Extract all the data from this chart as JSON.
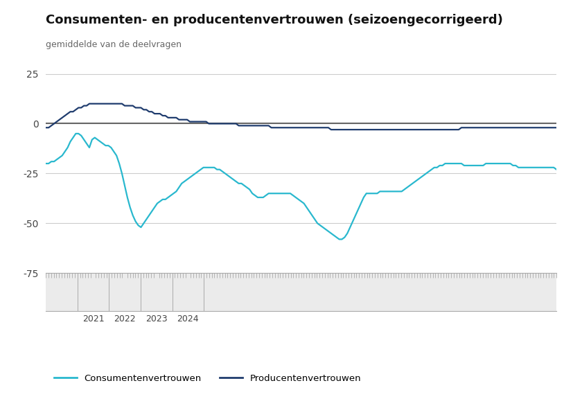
{
  "title": "Consumenten- en producentenvertrouwen (seizoengecorrigeerd)",
  "subtitle": "gemiddelde van de deelvragen",
  "ylim": [
    -75,
    30
  ],
  "yticks": [
    -75,
    -50,
    -25,
    0,
    25
  ],
  "bg_color": "#ffffff",
  "plot_bg_color": "#ffffff",
  "grid_color": "#cccccc",
  "zero_line_color": "#666666",
  "consumer_color": "#29b8ce",
  "producer_color": "#1f3c6e",
  "legend_consumer": "Consumentenvertrouwen",
  "legend_producer": "Producentenvertrouwen",
  "nav_bg_color": "#ebebeb",
  "consumer_data": [
    -20,
    -20,
    -19,
    -19,
    -18,
    -17,
    -16,
    -14,
    -12,
    -9,
    -7,
    -5,
    -5,
    -6,
    -8,
    -10,
    -12,
    -8,
    -7,
    -8,
    -9,
    -10,
    -11,
    -11,
    -12,
    -14,
    -16,
    -20,
    -25,
    -31,
    -37,
    -42,
    -46,
    -49,
    -51,
    -52,
    -50,
    -48,
    -46,
    -44,
    -42,
    -40,
    -39,
    -38,
    -38,
    -37,
    -36,
    -35,
    -34,
    -32,
    -30,
    -29,
    -28,
    -27,
    -26,
    -25,
    -24,
    -23,
    -22,
    -22,
    -22,
    -22,
    -22,
    -23,
    -23,
    -24,
    -25,
    -26,
    -27,
    -28,
    -29,
    -30,
    -30,
    -31,
    -32,
    -33,
    -35,
    -36,
    -37,
    -37,
    -37,
    -36,
    -35,
    -35,
    -35,
    -35,
    -35,
    -35,
    -35,
    -35,
    -35,
    -36,
    -37,
    -38,
    -39,
    -40,
    -42,
    -44,
    -46,
    -48,
    -50,
    -51,
    -52,
    -53,
    -54,
    -55,
    -56,
    -57,
    -58,
    -58,
    -57,
    -55,
    -52,
    -49,
    -46,
    -43,
    -40,
    -37,
    -35,
    -35,
    -35,
    -35,
    -35,
    -34,
    -34,
    -34,
    -34,
    -34,
    -34,
    -34,
    -34,
    -34,
    -33,
    -32,
    -31,
    -30,
    -29,
    -28,
    -27,
    -26,
    -25,
    -24,
    -23,
    -22,
    -22,
    -21,
    -21,
    -20,
    -20,
    -20,
    -20,
    -20,
    -20,
    -20,
    -21,
    -21,
    -21,
    -21,
    -21,
    -21,
    -21,
    -21,
    -20,
    -20,
    -20,
    -20,
    -20,
    -20,
    -20,
    -20,
    -20,
    -20,
    -21,
    -21,
    -22,
    -22,
    -22,
    -22,
    -22,
    -22,
    -22,
    -22,
    -22,
    -22,
    -22,
    -22,
    -22,
    -22,
    -23
  ],
  "producer_data": [
    -2,
    -2,
    -1,
    0,
    1,
    2,
    3,
    4,
    5,
    6,
    6,
    7,
    8,
    8,
    9,
    9,
    10,
    10,
    10,
    10,
    10,
    10,
    10,
    10,
    10,
    10,
    10,
    10,
    10,
    9,
    9,
    9,
    9,
    8,
    8,
    8,
    7,
    7,
    6,
    6,
    5,
    5,
    5,
    4,
    4,
    3,
    3,
    3,
    3,
    2,
    2,
    2,
    2,
    1,
    1,
    1,
    1,
    1,
    1,
    1,
    0,
    0,
    0,
    0,
    0,
    0,
    0,
    0,
    0,
    0,
    0,
    -1,
    -1,
    -1,
    -1,
    -1,
    -1,
    -1,
    -1,
    -1,
    -1,
    -1,
    -1,
    -2,
    -2,
    -2,
    -2,
    -2,
    -2,
    -2,
    -2,
    -2,
    -2,
    -2,
    -2,
    -2,
    -2,
    -2,
    -2,
    -2,
    -2,
    -2,
    -2,
    -2,
    -2,
    -3,
    -3,
    -3,
    -3,
    -3,
    -3,
    -3,
    -3,
    -3,
    -3,
    -3,
    -3,
    -3,
    -3,
    -3,
    -3,
    -3,
    -3,
    -3,
    -3,
    -3,
    -3,
    -3,
    -3,
    -3,
    -3,
    -3,
    -3,
    -3,
    -3,
    -3,
    -3,
    -3,
    -3,
    -3,
    -3,
    -3,
    -3,
    -3,
    -3,
    -3,
    -3,
    -3,
    -3,
    -3,
    -3,
    -3,
    -3,
    -2,
    -2,
    -2,
    -2,
    -2,
    -2,
    -2,
    -2,
    -2,
    -2,
    -2,
    -2,
    -2,
    -2,
    -2,
    -2,
    -2,
    -2,
    -2,
    -2,
    -2,
    -2,
    -2,
    -2,
    -2,
    -2,
    -2,
    -2,
    -2,
    -2,
    -2,
    -2,
    -2,
    -2,
    -2,
    -2
  ],
  "n_points": 189,
  "start_year": 2020,
  "start_month": 1,
  "year_labels": [
    2021,
    2022,
    2023,
    2024
  ],
  "year_separators": [
    2021,
    2022,
    2023,
    2024,
    2025
  ]
}
